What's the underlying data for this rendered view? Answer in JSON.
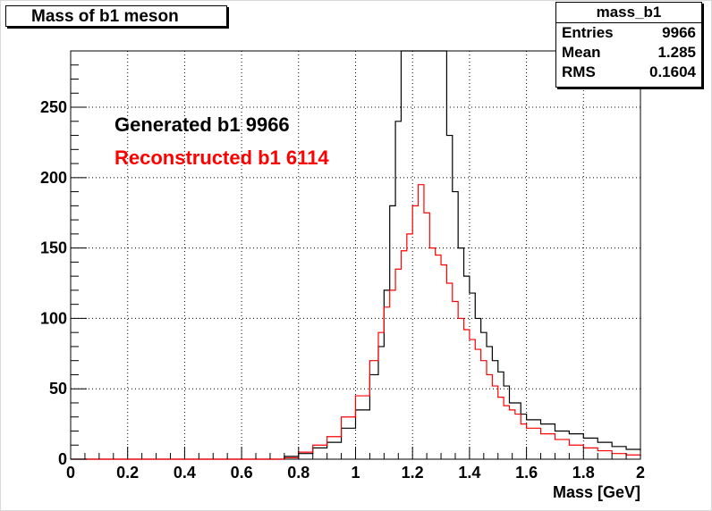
{
  "title": "Mass of b1 meson",
  "stats": {
    "name": "mass_b1",
    "rows": [
      {
        "label": "Entries",
        "value": "9966"
      },
      {
        "label": "Mean",
        "value": "1.285"
      },
      {
        "label": "RMS",
        "value": "0.1604"
      }
    ]
  },
  "chart_data": {
    "type": "line",
    "title": "Mass of b1 meson",
    "xlabel": "Mass [GeV]",
    "ylabel": "",
    "xlim": [
      0,
      2
    ],
    "ylim": [
      0,
      290
    ],
    "grid": true,
    "x_ticks": [
      "0",
      "0.2",
      "0.4",
      "0.6",
      "0.8",
      "1",
      "1.2",
      "1.4",
      "1.6",
      "1.8",
      "2"
    ],
    "y_ticks": [
      "0",
      "50",
      "100",
      "150",
      "200",
      "250"
    ],
    "legend": [
      {
        "text": "Generated b1 9966",
        "color": "#000000"
      },
      {
        "text": "Reconstructed b1 6114",
        "color": "#ff0000"
      }
    ],
    "series": [
      {
        "color": "#000000",
        "x": [
          0.75,
          0.8,
          0.85,
          0.9,
          0.95,
          1.0,
          1.05,
          1.08,
          1.1,
          1.12,
          1.14,
          1.16,
          1.18,
          1.2,
          1.22,
          1.24,
          1.26,
          1.28,
          1.3,
          1.32,
          1.34,
          1.36,
          1.38,
          1.4,
          1.42,
          1.44,
          1.46,
          1.48,
          1.5,
          1.52,
          1.54,
          1.56,
          1.58,
          1.6,
          1.65,
          1.7,
          1.75,
          1.8,
          1.85,
          1.9,
          1.95,
          2.0
        ],
        "values": [
          2,
          4,
          8,
          12,
          22,
          35,
          60,
          80,
          120,
          180,
          240,
          290,
          290,
          290,
          290,
          290,
          290,
          290,
          290,
          230,
          190,
          150,
          130,
          118,
          100,
          90,
          80,
          70,
          62,
          52,
          40,
          40,
          32,
          28,
          25,
          20,
          18,
          15,
          12,
          9,
          7,
          6
        ]
      },
      {
        "color": "#ff0000",
        "x": [
          0.75,
          0.8,
          0.85,
          0.9,
          0.95,
          1.0,
          1.05,
          1.08,
          1.1,
          1.12,
          1.14,
          1.16,
          1.18,
          1.2,
          1.22,
          1.24,
          1.26,
          1.28,
          1.3,
          1.32,
          1.34,
          1.36,
          1.38,
          1.4,
          1.42,
          1.44,
          1.46,
          1.48,
          1.5,
          1.52,
          1.54,
          1.56,
          1.58,
          1.6,
          1.65,
          1.7,
          1.75,
          1.8,
          1.85,
          1.9,
          1.95,
          2.0
        ],
        "values": [
          1,
          5,
          10,
          16,
          30,
          45,
          70,
          90,
          108,
          120,
          135,
          148,
          160,
          180,
          195,
          175,
          150,
          145,
          138,
          125,
          112,
          100,
          92,
          85,
          78,
          70,
          60,
          52,
          44,
          38,
          35,
          32,
          25,
          22,
          18,
          14,
          10,
          8,
          6,
          4,
          3,
          2
        ]
      }
    ]
  }
}
